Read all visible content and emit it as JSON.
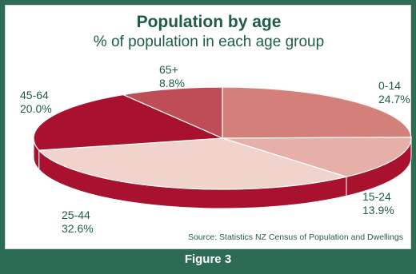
{
  "chart_data": {
    "type": "pie",
    "title": "Population by age",
    "subtitle": "% of population in each age group",
    "slices": [
      {
        "label": "0-14",
        "value": 24.7,
        "value_label": "24.7%",
        "color": "#d4807a"
      },
      {
        "label": "15-24",
        "value": 13.9,
        "value_label": "13.9%",
        "color": "#e6b0a8"
      },
      {
        "label": "25-44",
        "value": 32.6,
        "value_label": "32.6%",
        "color": "#f1d3cd"
      },
      {
        "label": "45-64",
        "value": 20.0,
        "value_label": "20.0%",
        "color": "#a8122e"
      },
      {
        "label": "65+",
        "value": 8.8,
        "value_label": "8.8%",
        "color": "#bf4d58"
      }
    ],
    "side_color": "#a8122e",
    "source": "Source: Statistics NZ Census of Population and Dwellings"
  },
  "footer": "Figure 3",
  "colors": {
    "frame": "#2e6b55",
    "text": "#1f5c44"
  }
}
